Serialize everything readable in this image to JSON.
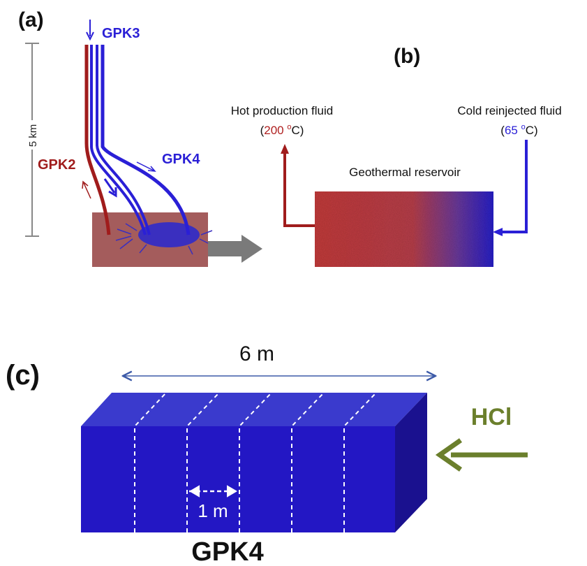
{
  "panel_a": {
    "label": "(a)",
    "wells": {
      "gpk3": "GPK3",
      "gpk2": "GPK2",
      "gpk4": "GPK4"
    },
    "depth_label": "5 km"
  },
  "panel_b": {
    "label": "(b)",
    "hot": {
      "line1": "Hot production fluid",
      "open": "(",
      "temp": "200",
      "unit_sup": "o",
      "unit": "C)"
    },
    "cold": {
      "line1": "Cold reinjected fluid",
      "open": "(",
      "temp": "65",
      "unit_sup": "o",
      "unit": "C)"
    },
    "reservoir_label": "Geothermal reservoir"
  },
  "panel_c": {
    "label": "(c)",
    "width_label": "6 m",
    "spacing_label": "1 m",
    "acid_label": "HCl",
    "block_label": "GPK4"
  },
  "colors": {
    "red_well": "#a01c1c",
    "blue_well": "#2a1fd6",
    "block_front": "#2317c4",
    "block_top": "#3a3acd",
    "block_side": "#1a118f",
    "acid_green": "#6b7f2c",
    "dim_blue": "#3c5aa8"
  }
}
